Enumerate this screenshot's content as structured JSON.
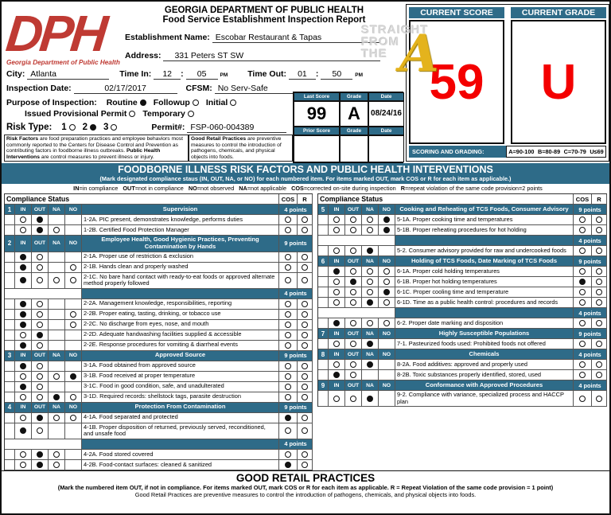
{
  "colors": {
    "teal": "#2e6b88",
    "score_red": "#f40000",
    "logo_red": "#bf3a33",
    "watermark_gold": "#e4b31d"
  },
  "header": {
    "logo": {
      "text": "DPH",
      "caption": "Georgia Department of Public Health"
    },
    "agency": "GEORGIA DEPARTMENT OF PUBLIC HEALTH",
    "report_title": "Food Service Establishment Inspection Report",
    "fields": {
      "establishment_label": "Establishment Name:",
      "establishment_value": "Escobar Restaurant & Tapas",
      "address_label": "Address:",
      "address_value": "331 Peters ST SW",
      "city_label": "City:",
      "city_value": "Atlanta",
      "time_in_label": "Time In:",
      "time_in_hour": "12",
      "time_in_min": "05",
      "time_in_ampm": "PM",
      "time_out_label": "Time Out:",
      "time_out_hour": "01",
      "time_out_min": "50",
      "time_out_ampm": "PM",
      "inspection_date_label": "Inspection Date:",
      "inspection_date_value": "02/17/2017",
      "cfsm_label": "CFSM:",
      "cfsm_value": "No Serv-Safe",
      "purpose_label": "Purpose of Inspection:",
      "purpose_options": [
        {
          "label": "Routine",
          "checked": true
        },
        {
          "label": "Followup",
          "checked": false
        },
        {
          "label": "Initial",
          "checked": false
        }
      ],
      "purpose_options2": [
        {
          "label": "Issued Provisional Permit",
          "checked": false
        },
        {
          "label": "Temporary",
          "checked": false
        }
      ],
      "risk_label": "Risk Type:",
      "risk_options": [
        {
          "label": "1",
          "checked": false
        },
        {
          "label": "2",
          "checked": true
        },
        {
          "label": "3",
          "checked": false
        }
      ],
      "permit_label": "Permit#:",
      "permit_value": "FSP-060-004389"
    },
    "risk_note": {
      "bold1": "Risk Factors",
      "text1": " are food preparation practices and employee behaviors most commonly reported to the Centers for Disease Control and Prevention as contributing factors in foodborne illness outbreaks. ",
      "bold2": "Public Health Interventions",
      "text2": " are control measures to prevent illness or injury."
    },
    "grp_note": {
      "bold1": "Good Retail Practices",
      "text1": " are preventive measures to control the introduction of pathogens, chemicals, and physical objects into foods."
    },
    "last_score_box": {
      "headers": [
        "Last Score",
        "Grade",
        "Date"
      ],
      "values": [
        "99",
        "A",
        "08/24/16"
      ],
      "prior_headers": [
        "Prior Score",
        "Grade",
        "Date"
      ],
      "prior_values": [
        "",
        "",
        ""
      ]
    },
    "score_panel": {
      "current_score_label": "CURRENT SCORE",
      "current_grade_label": "CURRENT GRADE",
      "current_score": "59",
      "current_grade": "U",
      "scoring_label": "SCORING AND GRADING:",
      "scoring_scale": [
        "A=90-100",
        "B=80-89",
        "C=70-79",
        "U≤69"
      ]
    },
    "watermark": {
      "lines": [
        "STRAIGHT",
        "FROM",
        "THE"
      ],
      "accent": "A"
    }
  },
  "risk_section": {
    "banner_title": "FOODBORNE ILLNESS RISK FACTORS AND PUBLIC HEALTH INTERVENTIONS",
    "banner_subtitle": "(Mark designated compliance staus (IN, OUT, NA, or NO) for each numbered item. For items marked OUT, mark COS or R for each item as applicable.)",
    "legend_items": [
      {
        "k": "IN",
        "v": "=in compliance"
      },
      {
        "k": "OUT",
        "v": "=not in compliance"
      },
      {
        "k": "NO",
        "v": "=not observed"
      },
      {
        "k": "NA",
        "v": "=not applicable"
      },
      {
        "k": "COS",
        "v": "=corrected on-site during inspection"
      },
      {
        "k": "R",
        "v": "=repeat violation of the same code provision=2 points"
      }
    ],
    "col_header": {
      "status": "Compliance Status",
      "cos": "COS",
      "r": "R"
    },
    "mark_headers": [
      "IN",
      "OUT",
      "NA",
      "NO"
    ],
    "left_rows": [
      {
        "type": "section",
        "num": "1",
        "title": "Supervision",
        "points": "4 points"
      },
      {
        "type": "item",
        "text": "1-2A. PIC present, demonstrates knowledge, performs duties",
        "marks": [
          "o",
          "f",
          "-",
          "-"
        ],
        "cos": "o",
        "r": "o"
      },
      {
        "type": "item",
        "text": "1-2B. Certified Food Protection Manager",
        "marks": [
          "o",
          "f",
          "o",
          "-"
        ],
        "cos": "o",
        "r": "o"
      },
      {
        "type": "section",
        "num": "2",
        "title": "Employee Health, Good Hygienic Practices, Preventing Contamination by Hands",
        "points": "9 points"
      },
      {
        "type": "item",
        "text": "2-1A. Proper use of restriction & exclusion",
        "marks": [
          "f",
          "o",
          "-",
          "-"
        ],
        "cos": "o",
        "r": "o"
      },
      {
        "type": "item",
        "text": "2-1B. Hands clean and properly washed",
        "marks": [
          "f",
          "o",
          "-",
          "o"
        ],
        "cos": "o",
        "r": "o"
      },
      {
        "type": "item",
        "text": "2-1C. No bare hand contact with ready-to-eat foods or approved alternate method properly followed",
        "marks": [
          "f",
          "o",
          "o",
          "o"
        ],
        "cos": "o",
        "r": "o"
      },
      {
        "type": "points",
        "points": "4 points"
      },
      {
        "type": "item",
        "text": "2-2A. Management knowledge, responsibilities, reporting",
        "marks": [
          "f",
          "o",
          "-",
          "-"
        ],
        "cos": "o",
        "r": "o"
      },
      {
        "type": "item",
        "text": "2-2B. Proper eating, tasting, drinking, or tobacco use",
        "marks": [
          "f",
          "o",
          "-",
          "o"
        ],
        "cos": "o",
        "r": "o"
      },
      {
        "type": "item",
        "text": "2-2C. No discharge from eyes, nose, and mouth",
        "marks": [
          "f",
          "o",
          "-",
          "o"
        ],
        "cos": "o",
        "r": "o"
      },
      {
        "type": "item",
        "text": "2-2D. Adequate handwashing facilities supplied & accessible",
        "marks": [
          "o",
          "f",
          "-",
          "-"
        ],
        "cos": "o",
        "r": "o"
      },
      {
        "type": "item",
        "text": "2-2E. Response procedures for vomiting & diarrheal events",
        "marks": [
          "f",
          "o",
          "-",
          "-"
        ],
        "cos": "o",
        "r": "o"
      },
      {
        "type": "section",
        "num": "3",
        "title": "Approved Source",
        "points": "9 points"
      },
      {
        "type": "item",
        "text": "3-1A. Food obtained from approved source",
        "marks": [
          "f",
          "o",
          "-",
          "-"
        ],
        "cos": "o",
        "r": "o"
      },
      {
        "type": "item",
        "text": "3-1B. Food received at proper temperature",
        "marks": [
          "o",
          "o",
          "o",
          "f"
        ],
        "cos": "o",
        "r": "o"
      },
      {
        "type": "item",
        "text": "3-1C. Food in good condition, safe, and unadulterated",
        "marks": [
          "f",
          "o",
          "-",
          "-"
        ],
        "cos": "o",
        "r": "o"
      },
      {
        "type": "item",
        "text": "3-1D. Required records: shellstock tags, parasite destruction",
        "marks": [
          "o",
          "o",
          "f",
          "o"
        ],
        "cos": "o",
        "r": "o"
      },
      {
        "type": "section",
        "num": "4",
        "title": "Protection From Contamination",
        "points": "9 points"
      },
      {
        "type": "item",
        "text": "4-1A. Food separated and protected",
        "marks": [
          "o",
          "f",
          "o",
          "o"
        ],
        "cos": "f",
        "r": "o"
      },
      {
        "type": "item",
        "text": "4-1B. Proper disposition of returned, previously served, reconditioned, and unsafe food",
        "marks": [
          "f",
          "o",
          "-",
          "-"
        ],
        "cos": "o",
        "r": "o"
      },
      {
        "type": "points",
        "points": "4 points"
      },
      {
        "type": "item",
        "text": "4-2A. Food stored covered",
        "marks": [
          "o",
          "f",
          "o",
          "-"
        ],
        "cos": "o",
        "r": "o"
      },
      {
        "type": "item",
        "text": "4-2B. Food-contact surfaces: cleaned & sanitized",
        "marks": [
          "o",
          "f",
          "o",
          "-"
        ],
        "cos": "f",
        "r": "o"
      }
    ],
    "right_rows": [
      {
        "type": "section",
        "num": "5",
        "title": "Cooking and Reheating of TCS Foods, Consumer Advisory",
        "points": "9 points"
      },
      {
        "type": "item",
        "text": "5-1A. Proper cooking time and temperatures",
        "marks": [
          "o",
          "o",
          "o",
          "f"
        ],
        "cos": "o",
        "r": "o"
      },
      {
        "type": "item",
        "text": "5-1B. Proper reheating procedures for hot holding",
        "marks": [
          "o",
          "o",
          "o",
          "f"
        ],
        "cos": "o",
        "r": "o"
      },
      {
        "type": "points",
        "points": "4 points"
      },
      {
        "type": "item",
        "text": "5-2. Consumer advisory provided for raw and undercooked foods",
        "marks": [
          "o",
          "o",
          "f",
          "-"
        ],
        "cos": "o",
        "r": "o"
      },
      {
        "type": "section",
        "num": "6",
        "title": "Holding of TCS Foods, Date Marking of TCS Foods",
        "points": "9 points"
      },
      {
        "type": "item",
        "text": "6-1A. Proper cold holding temperatures",
        "marks": [
          "f",
          "o",
          "o",
          "o"
        ],
        "cos": "o",
        "r": "o"
      },
      {
        "type": "item",
        "text": "6-1B. Proper hot holding temperatures",
        "marks": [
          "o",
          "f",
          "o",
          "o"
        ],
        "cos": "f",
        "r": "o"
      },
      {
        "type": "item",
        "text": "6-1C. Proper cooling time and temperature",
        "marks": [
          "o",
          "o",
          "o",
          "f"
        ],
        "cos": "o",
        "r": "o"
      },
      {
        "type": "item",
        "text": "6-1D. Time as a public health control: procedures and records",
        "marks": [
          "o",
          "o",
          "f",
          "o"
        ],
        "cos": "o",
        "r": "o"
      },
      {
        "type": "points",
        "points": "4 points"
      },
      {
        "type": "item",
        "text": "6-2. Proper date marking and disposition",
        "marks": [
          "f",
          "o",
          "o",
          "o"
        ],
        "cos": "o",
        "r": "o"
      },
      {
        "type": "section",
        "num": "7",
        "title": "Highly Susceptible Populations",
        "points": "9 points"
      },
      {
        "type": "item",
        "text": "7-1. Pasteurized foods used: Prohibited foods not offered",
        "marks": [
          "o",
          "o",
          "f",
          "-"
        ],
        "cos": "o",
        "r": "o"
      },
      {
        "type": "section",
        "num": "8",
        "title": "Chemicals",
        "points": "4 points"
      },
      {
        "type": "item",
        "text": "8-2A. Food additives: approved and properly used",
        "marks": [
          "o",
          "o",
          "f",
          "-"
        ],
        "cos": "o",
        "r": "o"
      },
      {
        "type": "item",
        "text": "8-2B. Toxic substances properly identified, stored, used",
        "marks": [
          "f",
          "o",
          "-",
          "-"
        ],
        "cos": "o",
        "r": "o"
      },
      {
        "type": "section",
        "num": "9",
        "title": "Conformance with Approved Procedures",
        "points": "4 points"
      },
      {
        "type": "item",
        "text": "9-2. Compliance with variance, specialized process and HACCP plan",
        "marks": [
          "o",
          "o",
          "f",
          "-"
        ],
        "cos": "o",
        "r": "o"
      }
    ]
  },
  "good_retail": {
    "title": "GOOD RETAIL PRACTICES",
    "line1": "(Mark the numbered item OUT, if not in compliance. For items marked OUT, mark COS or R for each item as applicable. R = Repeat Violation of the same code provision = 1 point)",
    "line2": "Good Retail Practices are preventive measures to control the introduction of pathogens, chemicals, and physical objects into foods."
  }
}
